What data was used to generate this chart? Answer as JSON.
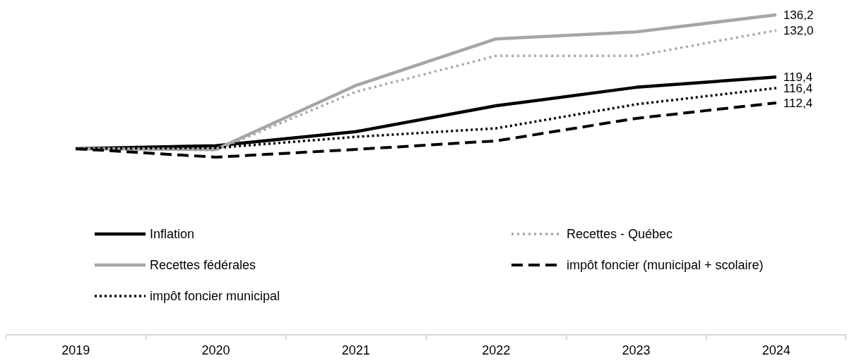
{
  "chart_data": {
    "type": "line",
    "categories": [
      "2019",
      "2020",
      "2021",
      "2022",
      "2023",
      "2024"
    ],
    "tick_labels": "x",
    "grid": false,
    "legend": "bottom",
    "marker": "none",
    "series": [
      {
        "name": "Inflation",
        "color": "#000000",
        "line_style": "solid",
        "values": [
          100,
          100.8,
          104.6,
          111.6,
          116.6,
          119.4
        ],
        "value_labels": [
          null,
          null,
          null,
          null,
          null,
          "119,4"
        ]
      },
      {
        "name": "Recettes - Québec",
        "color": "#a6a6a6",
        "line_style": "dotted",
        "values": [
          100,
          99.6,
          115.4,
          125.1,
          125.1,
          132.0
        ],
        "value_labels": [
          null,
          null,
          null,
          null,
          null,
          "132,0"
        ]
      },
      {
        "name": "Recettes fédérales",
        "color": "#a6a6a6",
        "line_style": "solid",
        "values": [
          100,
          99.8,
          117.1,
          129.7,
          131.6,
          136.2
        ],
        "value_labels": [
          null,
          null,
          null,
          null,
          null,
          "136,2"
        ]
      },
      {
        "name": "impôt foncier (municipal + scolaire)",
        "color": "#000000",
        "line_style": "dashed",
        "values": [
          100,
          97.7,
          99.8,
          102.1,
          108.2,
          112.4
        ],
        "value_labels": [
          null,
          null,
          null,
          null,
          null,
          "112,4"
        ]
      },
      {
        "name": "impôt foncier municipal",
        "color": "#000000",
        "line_style": "dotted",
        "values": [
          100,
          100.2,
          103.2,
          105.5,
          112.0,
          116.4
        ],
        "value_labels": [
          null,
          null,
          null,
          null,
          null,
          "116,4"
        ]
      }
    ]
  }
}
